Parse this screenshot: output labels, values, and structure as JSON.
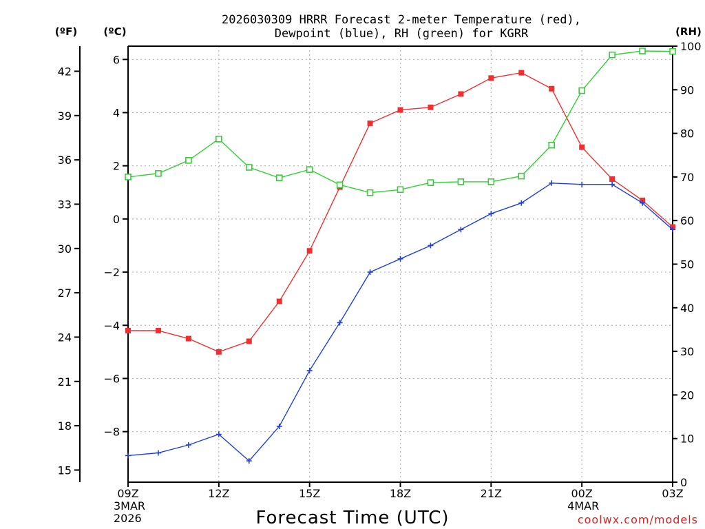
{
  "chart_data": {
    "type": "line",
    "title_line1": "2026030309 HRRR Forecast 2-meter Temperature (red),",
    "title_line2": "Dewpoint (blue), RH (green) for KGRR",
    "xlabel": "Forecast Time (UTC)",
    "credit": "coolwx.com/models",
    "left_axis_f_label": "(ºF)",
    "left_axis_c_label": "(ºC)",
    "right_axis_label": "(RH)",
    "hours": [
      9,
      10,
      11,
      12,
      13,
      14,
      15,
      16,
      17,
      18,
      19,
      20,
      21,
      22,
      23,
      24,
      25,
      26,
      27
    ],
    "xlim": [
      9,
      27
    ],
    "ylim_c": [
      -9.9,
      6.5
    ],
    "ylim_rh": [
      0,
      100
    ],
    "x_ticks": [
      {
        "hour": 9,
        "label": "09Z",
        "sub1": "3MAR",
        "sub2": "2026"
      },
      {
        "hour": 12,
        "label": "12Z",
        "sub1": "",
        "sub2": ""
      },
      {
        "hour": 15,
        "label": "15Z",
        "sub1": "",
        "sub2": ""
      },
      {
        "hour": 18,
        "label": "18Z",
        "sub1": "",
        "sub2": ""
      },
      {
        "hour": 21,
        "label": "21Z",
        "sub1": "",
        "sub2": ""
      },
      {
        "hour": 24,
        "label": "00Z",
        "sub1": "4MAR",
        "sub2": ""
      },
      {
        "hour": 27,
        "label": "03Z",
        "sub1": "",
        "sub2": ""
      }
    ],
    "c_ticks": [
      6,
      4,
      2,
      0,
      -2,
      -4,
      -6,
      -8
    ],
    "c_tick_labels": [
      "6",
      "4",
      "2",
      "0",
      "−2",
      "−4",
      "−6",
      "−8"
    ],
    "f_ticks": [
      42,
      39,
      36,
      33,
      30,
      27,
      24,
      21,
      18,
      15
    ],
    "rh_ticks": [
      100,
      90,
      80,
      70,
      60,
      50,
      40,
      30,
      20,
      10,
      0
    ],
    "series": [
      {
        "name": "Temperature",
        "unit": "C",
        "color": "#f03030",
        "marker": "filled-square",
        "values": [
          -4.2,
          -4.2,
          -4.5,
          -5.0,
          -4.6,
          -3.1,
          -1.2,
          1.2,
          3.6,
          4.1,
          4.2,
          4.7,
          5.3,
          5.5,
          4.9,
          2.7,
          1.5,
          0.7,
          -0.3
        ]
      },
      {
        "name": "Dewpoint",
        "unit": "C",
        "color": "#2040e0",
        "marker": "plus",
        "values": [
          -8.9,
          -8.8,
          -8.5,
          -8.1,
          -9.1,
          -7.8,
          -5.7,
          -3.9,
          -2.0,
          -1.5,
          -1.0,
          -0.4,
          0.2,
          0.6,
          1.35,
          1.3,
          1.3,
          0.6,
          -0.4
        ]
      },
      {
        "name": "RH",
        "unit": "%",
        "color": "#30d030",
        "marker": "open-square",
        "values": [
          70.0,
          70.8,
          73.8,
          78.7,
          72.2,
          69.8,
          71.7,
          68.2,
          66.4,
          67.1,
          68.7,
          68.9,
          68.9,
          70.2,
          77.3,
          89.8,
          98.0,
          98.9,
          98.8
        ]
      }
    ]
  },
  "colors": {
    "grid": "#b4b4b4",
    "axis": "#000000",
    "credit": "#e02020"
  }
}
